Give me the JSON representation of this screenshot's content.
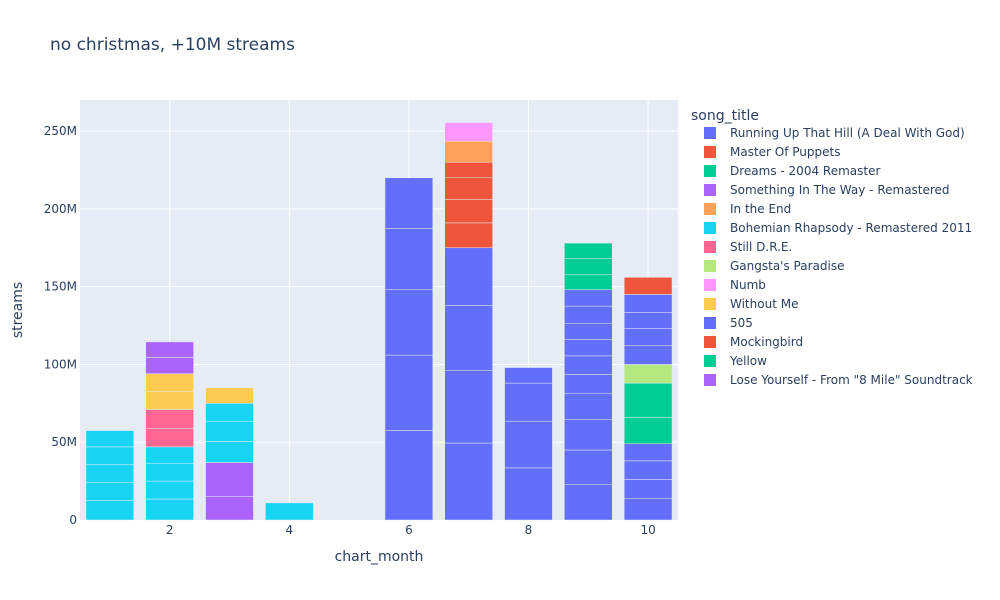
{
  "chart_data": {
    "type": "bar",
    "barmode": "stack",
    "title": "no christmas, +10M streams",
    "xlabel": "chart_month",
    "ylabel": "streams",
    "xlim": [
      0.5,
      10.5
    ],
    "ylim": [
      0,
      270000000
    ],
    "xticks": [
      2,
      4,
      6,
      8,
      10
    ],
    "xtick_labels": [
      "2",
      "4",
      "6",
      "8",
      "10"
    ],
    "yticks": [
      0,
      50000000,
      100000000,
      150000000,
      200000000,
      250000000
    ],
    "ytick_labels": [
      "0",
      "50M",
      "100M",
      "150M",
      "200M",
      "250M"
    ],
    "grid": true,
    "legend_title": "song_title",
    "legend_position": "right",
    "series": [
      {
        "name": "Running Up That Hill (A Deal With God)",
        "color": "#636efa"
      },
      {
        "name": "Master Of Puppets",
        "color": "#EF553B"
      },
      {
        "name": "Dreams - 2004 Remaster",
        "color": "#00cc96"
      },
      {
        "name": "Something In The Way - Remastered",
        "color": "#ab63fa"
      },
      {
        "name": "In the End",
        "color": "#FFA15A"
      },
      {
        "name": "Bohemian Rhapsody - Remastered 2011",
        "color": "#19d3f3"
      },
      {
        "name": "Still D.R.E.",
        "color": "#FF6692"
      },
      {
        "name": "Gangsta's Paradise",
        "color": "#B6E880"
      },
      {
        "name": "Numb",
        "color": "#FF97FF"
      },
      {
        "name": "Without Me",
        "color": "#FECB52"
      },
      {
        "name": "505",
        "color": "#636efa"
      },
      {
        "name": "Mockingbird",
        "color": "#EF553B"
      },
      {
        "name": "Yellow",
        "color": "#00cc96"
      },
      {
        "name": "Lose Yourself - From \"8 Mile\" Soundtrack",
        "color": "#ab63fa"
      }
    ],
    "stacks": [
      {
        "x": 1,
        "segments": [
          {
            "series": "Bohemian Rhapsody - Remastered 2011",
            "values": [
              12500000,
              11500000,
              11500000,
              11500000,
              10500000
            ]
          }
        ]
      },
      {
        "x": 2,
        "segments": [
          {
            "series": "Bohemian Rhapsody - Remastered 2011",
            "values": [
              13500000,
              11500000,
              11500000,
              10500000
            ]
          },
          {
            "series": "Still D.R.E.",
            "values": [
              12000000,
              12000000
            ]
          },
          {
            "series": "Without Me",
            "values": [
              11500000,
              11500000
            ]
          },
          {
            "series": "Lose Yourself - From \"8 Mile\" Soundtrack",
            "values": [
              10500000,
              10000000
            ]
          }
        ]
      },
      {
        "x": 3,
        "segments": [
          {
            "series": "Something In The Way - Remastered",
            "values": [
              15000000,
              22000000
            ]
          },
          {
            "series": "Bohemian Rhapsody - Remastered 2011",
            "values": [
              13500000,
              13000000,
              11500000
            ]
          },
          {
            "series": "Without Me",
            "values": [
              10000000
            ]
          }
        ]
      },
      {
        "x": 4,
        "segments": [
          {
            "series": "Bohemian Rhapsody - Remastered 2011",
            "values": [
              11000000
            ]
          }
        ]
      },
      {
        "x": 6,
        "segments": [
          {
            "series": "Running Up That Hill (A Deal With God)",
            "values": [
              57500000,
              48500000,
              42000000,
              39500000,
              32500000
            ]
          }
        ]
      },
      {
        "x": 7,
        "segments": [
          {
            "series": "Running Up That Hill (A Deal With God)",
            "values": [
              49500000,
              46500000,
              42000000,
              37000000
            ]
          },
          {
            "series": "Master Of Puppets",
            "values": [
              16000000,
              15000000,
              14000000,
              10000000
            ]
          },
          {
            "series": "In the End",
            "values": [
              13500000
            ]
          },
          {
            "series": "Numb",
            "values": [
              12000000
            ]
          }
        ]
      },
      {
        "x": 8,
        "segments": [
          {
            "series": "Running Up That Hill (A Deal With God)",
            "values": [
              33500000,
              30000000,
              24500000,
              10000000
            ]
          }
        ]
      },
      {
        "x": 9,
        "segments": [
          {
            "series": "Running Up That Hill (A Deal With God)",
            "values": [
              23000000,
              22000000,
              19500000,
              17000000,
              12000000,
              12000000,
              10500000,
              10500000,
              11000000,
              10500000
            ]
          },
          {
            "series": "Yellow",
            "values": [
              10000000,
              10000000,
              10000000
            ]
          }
        ]
      },
      {
        "x": 10,
        "segments": [
          {
            "series": "505",
            "values": [
              14000000,
              12000000,
              12000000,
              11000000
            ]
          },
          {
            "series": "Yellow",
            "values": [
              17000000,
              22000000
            ]
          },
          {
            "series": "Gangsta's Paradise",
            "values": [
              12000000
            ]
          },
          {
            "series": "Running Up That Hill (A Deal With God)",
            "values": [
              12000000,
              11000000,
              10500000,
              11500000
            ]
          },
          {
            "series": "Mockingbird",
            "values": [
              11000000
            ]
          }
        ]
      }
    ]
  }
}
